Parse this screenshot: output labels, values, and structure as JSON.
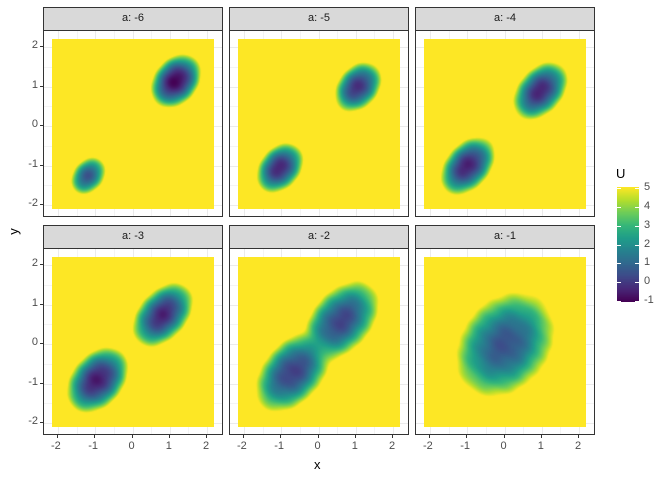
{
  "chart_data": {
    "type": "heatmap",
    "facet_variable": "a",
    "facets": [
      {
        "label": "a: -6",
        "a": -6
      },
      {
        "label": "a: -5",
        "a": -5
      },
      {
        "label": "a: -4",
        "a": -4
      },
      {
        "label": "a: -3",
        "a": -3
      },
      {
        "label": "a: -2",
        "a": -2
      },
      {
        "label": "a: -1",
        "a": -1
      }
    ],
    "xlabel": "x",
    "ylabel": "y",
    "xlim": [
      -2.2,
      2.2
    ],
    "ylim": [
      -2.2,
      2.2
    ],
    "x_ticks": [
      "-2",
      "-1",
      "0",
      "1",
      "2"
    ],
    "y_ticks": [
      "2",
      "1",
      "0",
      "-1",
      "-2"
    ],
    "grid": true,
    "legend": {
      "title": "U",
      "position": "right",
      "range": [
        -1,
        5
      ],
      "ticks": [
        "5",
        "4",
        "3",
        "2",
        "1",
        "0",
        "-1"
      ],
      "colormap": "viridis"
    },
    "colors": {
      "low": "#440154",
      "mid": "#21908c",
      "high": "#fde725",
      "strip": "#d9d9d9"
    }
  }
}
